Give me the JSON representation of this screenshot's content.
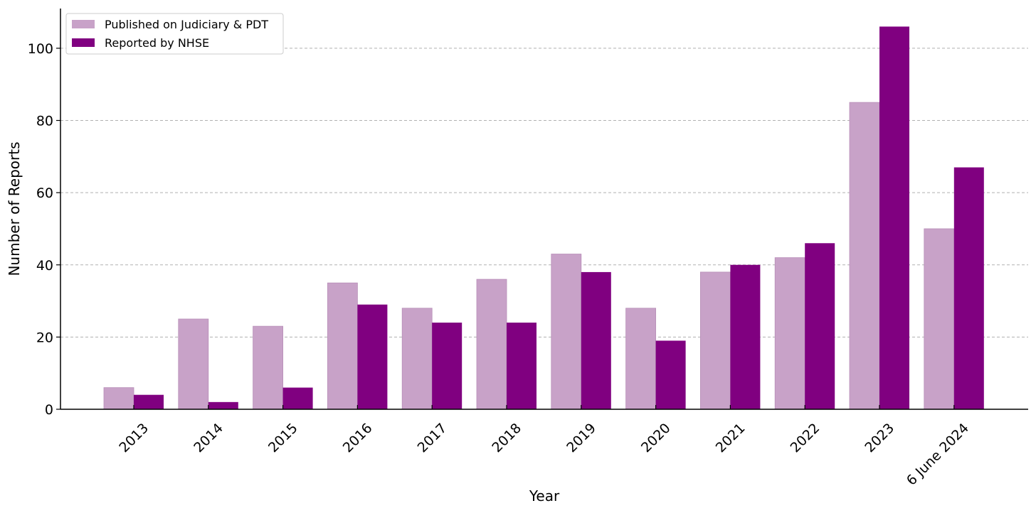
{
  "chart_data": {
    "type": "bar",
    "xlabel": "Year",
    "ylabel": "Number of Reports",
    "categories": [
      "2013",
      "2014",
      "2015",
      "2016",
      "2017",
      "2018",
      "2019",
      "2020",
      "2021",
      "2022",
      "2023",
      "6 June 2024"
    ],
    "series": [
      {
        "name": "Published on Judiciary & PDT",
        "color": "#c8a2c8",
        "values": [
          6,
          25,
          23,
          35,
          28,
          36,
          43,
          28,
          38,
          42,
          85,
          50
        ]
      },
      {
        "name": "Reported by NHSE",
        "color": "#800080",
        "values": [
          4,
          2,
          6,
          29,
          24,
          24,
          38,
          19,
          40,
          46,
          106,
          67
        ]
      }
    ],
    "ylim": [
      0,
      111
    ],
    "yticks": [
      0,
      20,
      40,
      60,
      80,
      100
    ],
    "grid": "y-dashed",
    "legend_position": "top-left"
  }
}
